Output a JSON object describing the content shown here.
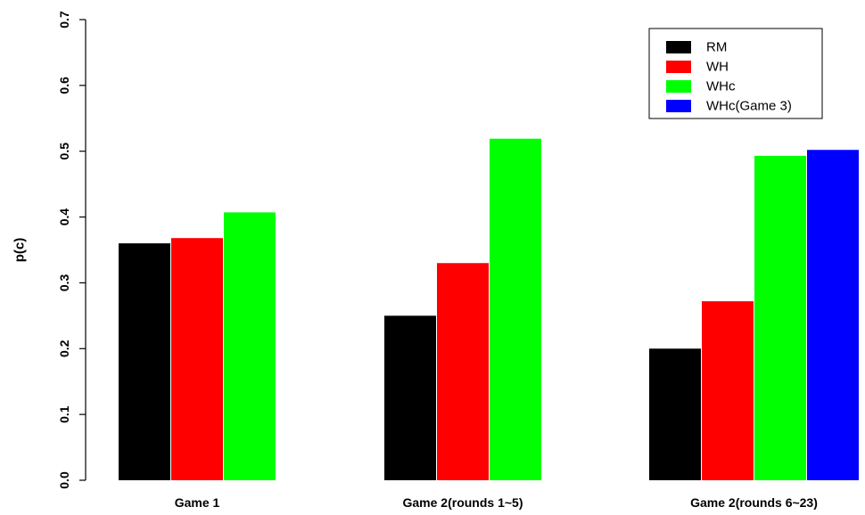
{
  "chart_data": {
    "type": "bar",
    "ylabel": "p(c)",
    "ylim": [
      0,
      0.7
    ],
    "yticks": [
      "0.0",
      "0.1",
      "0.2",
      "0.3",
      "0.4",
      "0.5",
      "0.6",
      "0.7"
    ],
    "categories": [
      "Game 1",
      "Game 2(rounds 1~5)",
      "Game 2(rounds 6~23)"
    ],
    "series": [
      {
        "name": "RM",
        "color": "#000000",
        "values": [
          0.36,
          0.25,
          0.2
        ]
      },
      {
        "name": "WH",
        "color": "#ff0000",
        "values": [
          0.368,
          0.33,
          0.272
        ]
      },
      {
        "name": "WHc",
        "color": "#00ff00",
        "values": [
          0.407,
          0.519,
          0.493
        ]
      },
      {
        "name": "WHc(Game 3)",
        "color": "#0000ff",
        "values": [
          null,
          null,
          0.502
        ]
      }
    ],
    "legend_position": "top-right",
    "grid": false
  }
}
